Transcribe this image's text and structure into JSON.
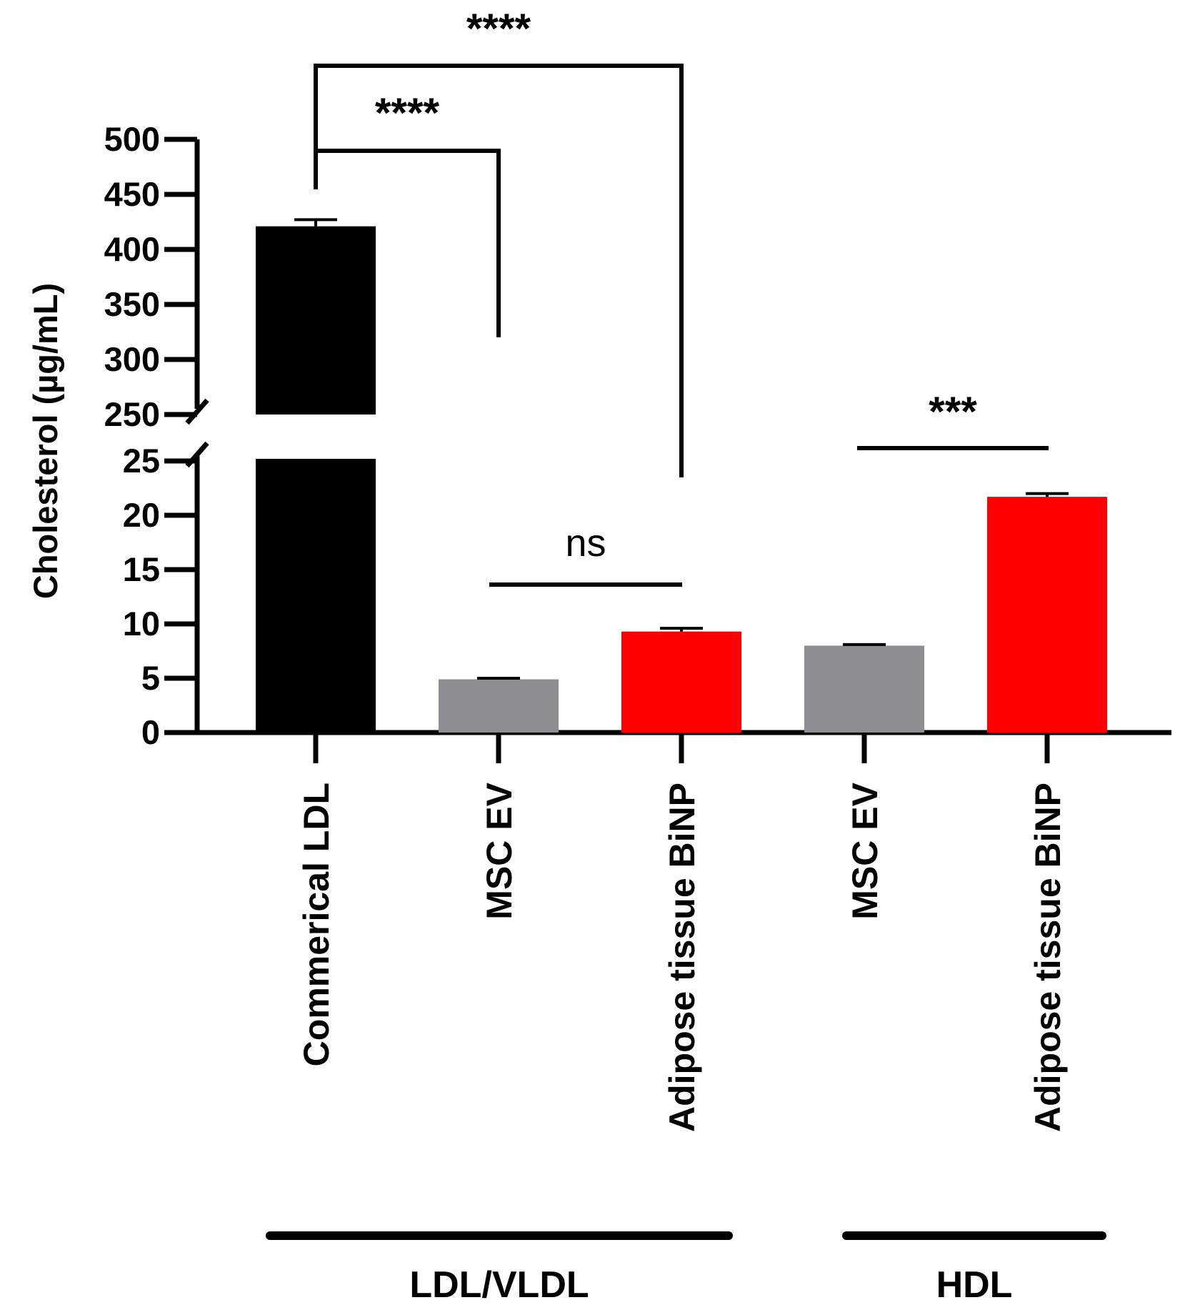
{
  "chart_data": {
    "type": "bar",
    "title": "",
    "ylabel": "Cholesterol (µg/mL)",
    "xlabel": "",
    "y_axis_break": {
      "lower_segment": [
        0,
        25
      ],
      "upper_segment": [
        250,
        500
      ]
    },
    "y_ticks_lower": [
      "0",
      "5",
      "10",
      "15",
      "20",
      "25"
    ],
    "y_ticks_upper": [
      "250",
      "300",
      "350",
      "400",
      "450",
      "500"
    ],
    "categories": [
      "Commerical LDL",
      "MSC EV",
      "Adipose tissue BiNP",
      "MSC EV",
      "Adipose tissue BiNP"
    ],
    "groups": [
      {
        "label": "LDL/VLDL",
        "members": [
          0,
          1,
          2
        ]
      },
      {
        "label": "HDL",
        "members": [
          3,
          4
        ]
      }
    ],
    "values": [
      421,
      4.9,
      9.3,
      8.0,
      21.7
    ],
    "errors": [
      6,
      0.1,
      0.3,
      0.1,
      0.3
    ],
    "colors": [
      "#000000",
      "#8e8d92",
      "#ff0000",
      "#8e8d92",
      "#ff0000"
    ],
    "significance": [
      {
        "from": 0,
        "to": 2,
        "label": "****"
      },
      {
        "from": 0,
        "to": 1,
        "label": "****"
      },
      {
        "from": 1,
        "to": 2,
        "label": "ns"
      },
      {
        "from": 3,
        "to": 4,
        "label": "***"
      }
    ],
    "grid": false,
    "legend": "none"
  }
}
